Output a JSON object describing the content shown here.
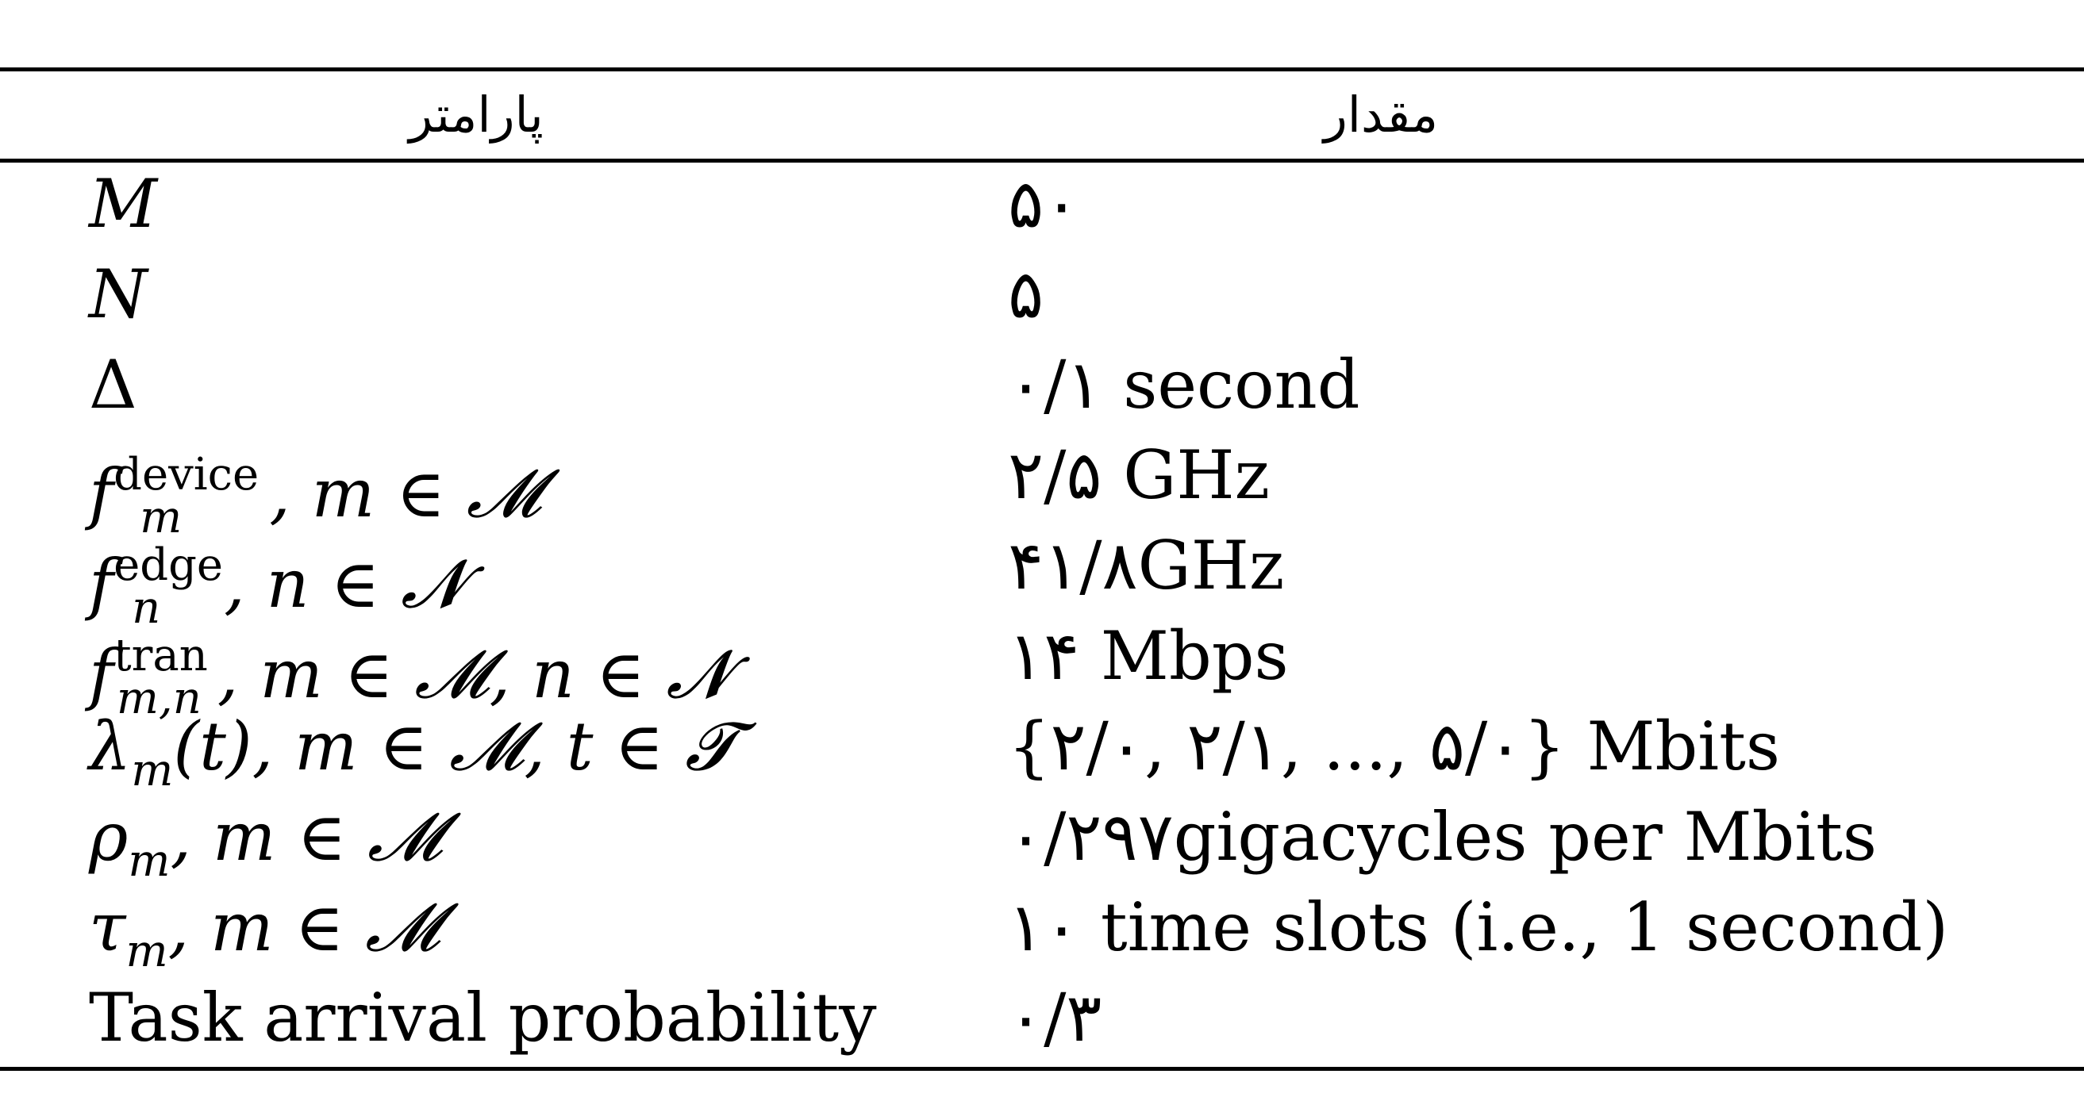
{
  "header": {
    "param_label": "پارامتر",
    "value_label": "مقدار"
  },
  "rows": [
    {
      "param_main": "M",
      "param_sup": "",
      "param_sub": "",
      "param_rest": "",
      "value": "۵۰"
    },
    {
      "param_main": "N",
      "param_sup": "",
      "param_sub": "",
      "param_rest": "",
      "value": "۵"
    },
    {
      "param_main": "Δ",
      "param_sup": "",
      "param_sub": "",
      "param_rest": "",
      "value": "۰/۱ second"
    },
    {
      "param_main": "f",
      "param_sup": "device",
      "param_sub": "m",
      "param_rest": ", m ∈ 𝓜",
      "value": "۲/۵ GHz"
    },
    {
      "param_main": "f",
      "param_sup": "edge",
      "param_sub": "n",
      "param_rest": ", n ∈ 𝓝",
      "value": "۴۱/۸GHz"
    },
    {
      "param_main": "f",
      "param_sup": "tran",
      "param_sub": "m,n",
      "param_rest": ", m ∈ 𝓜, n ∈ 𝓝",
      "value": "۱۴ Mbps"
    },
    {
      "param_main": "λ",
      "param_sup": "",
      "param_sub": "m",
      "param_rest": "(t), m ∈ 𝓜, t ∈ 𝓣",
      "value": "{۲/۰, ۲/۱, ..., ۵/۰} Mbits"
    },
    {
      "param_main": "ρ",
      "param_sup": "",
      "param_sub": "m",
      "param_rest": ", m ∈ 𝓜",
      "value": "۰/۲۹۷gigacycles per Mbits"
    },
    {
      "param_main": "τ",
      "param_sup": "",
      "param_sub": "m",
      "param_rest": ", m ∈ 𝓜",
      "value": "۱۰ time slots (i.e., 1 second)"
    },
    {
      "param_main": "Task arrival probability",
      "param_sup": "",
      "param_sub": "",
      "param_rest": "",
      "value": "۰/۳"
    }
  ]
}
